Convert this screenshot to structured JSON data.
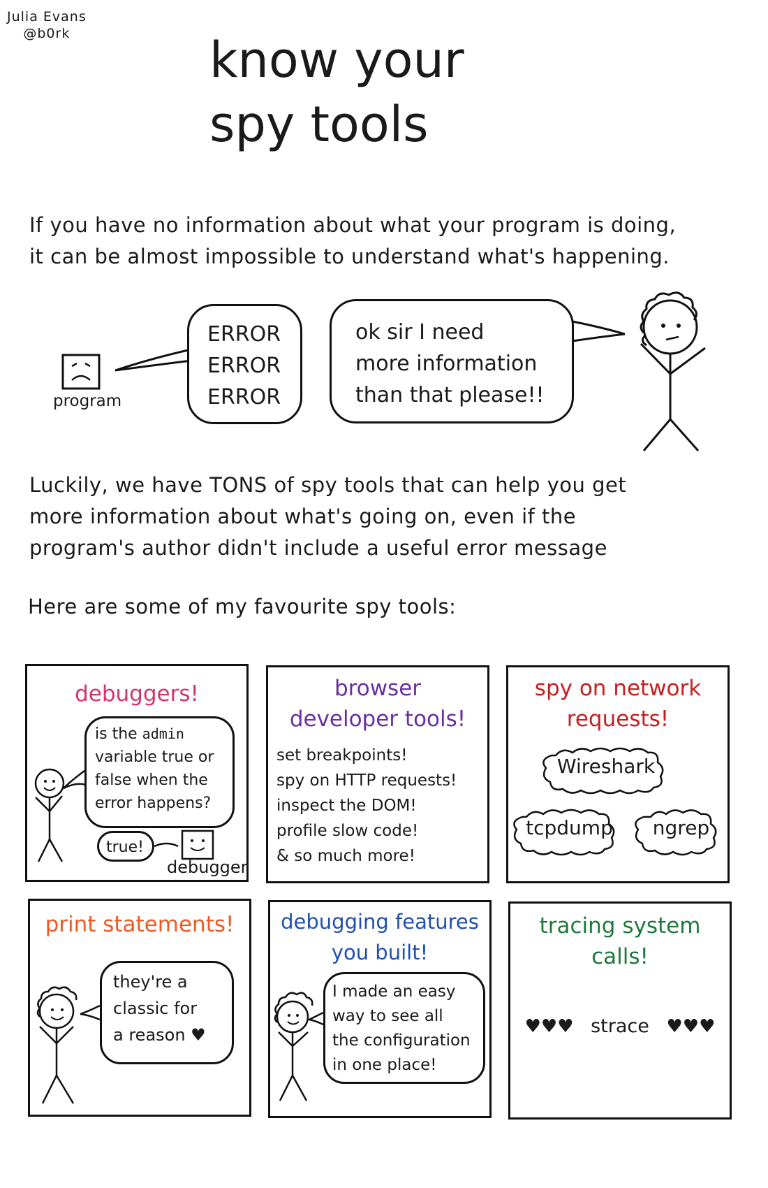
{
  "author": {
    "name": "Julia Evans",
    "handle": "@b0rk"
  },
  "title": {
    "line1": "know your",
    "line2": "spy tools"
  },
  "intro": {
    "line1": "If you have no information about what your program is doing,",
    "line2": "it can be almost impossible to understand what's happening."
  },
  "scene": {
    "program_label": "program",
    "error_text": "ERROR\nERROR\nERROR",
    "person_text": "ok sir I need\nmore information\nthan that please!!"
  },
  "luckily": {
    "line1": "Luckily, we have TONS of spy tools that can help you get",
    "line2": "more information about what's going on, even if the",
    "line3": "program's author didn't include a useful error message"
  },
  "favourites_heading": "Here are some of my favourite spy tools:",
  "panels": {
    "debuggers": {
      "title": "debuggers!",
      "q_part1": "is the ",
      "q_code": "admin",
      "q_part2": "\nvariable true or\nfalse when the\nerror happens?",
      "answer": "true!",
      "label": "debugger"
    },
    "browser": {
      "title": "browser\ndeveloper tools!",
      "items": [
        "set breakpoints!",
        "spy on HTTP requests!",
        "inspect the DOM!",
        "profile slow code!",
        "& so much more!"
      ]
    },
    "network": {
      "title": "spy on network\nrequests!",
      "tools": [
        "Wireshark",
        "tcpdump",
        "ngrep"
      ]
    },
    "print": {
      "title": "print statements!",
      "speech": "they're a\nclassic for\na reason ♥"
    },
    "features": {
      "title": "debugging features\nyou built!",
      "speech": "I made an easy\nway to see all\nthe configuration\nin one place!"
    },
    "tracing": {
      "title": "tracing system\ncalls!",
      "hearts_left": "♥♥♥",
      "tool": "strace",
      "hearts_right": "♥♥♥"
    }
  },
  "colors": {
    "debuggers": "#d6336c",
    "browser": "#6a2fa0",
    "network": "#c81e1e",
    "print": "#ef5a24",
    "features": "#1f4fb5",
    "tracing": "#1d7a3a"
  }
}
